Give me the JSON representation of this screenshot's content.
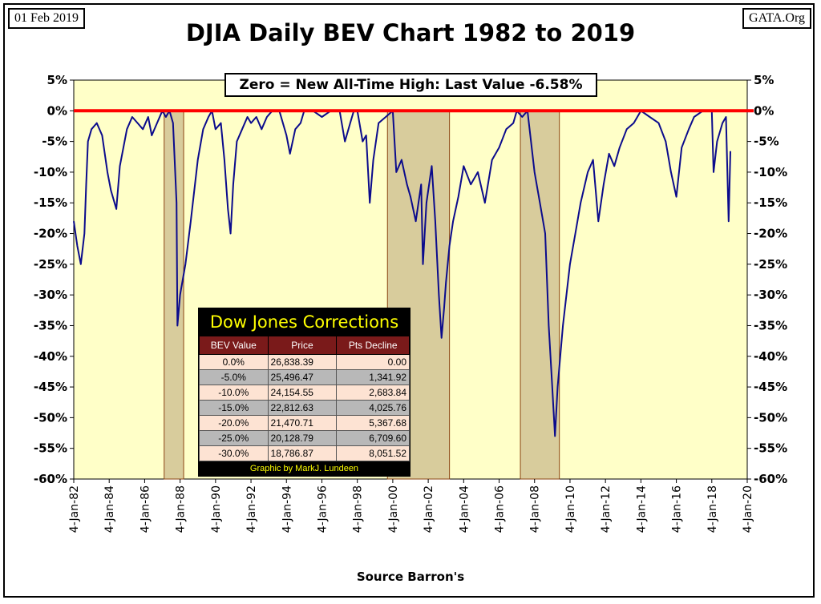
{
  "header": {
    "date": "01 Feb 2019",
    "site": "GATA.Org"
  },
  "callout": "Zero = New All-Time High: Last Value  -6.58%",
  "corrections": {
    "title": "Dow Jones Corrections",
    "headers": [
      "BEV Value",
      "Price",
      "Pts Decline"
    ],
    "rows": [
      [
        "0.0%",
        "26,838.39",
        "0.00"
      ],
      [
        "-5.0%",
        "25,496.47",
        "1,341.92"
      ],
      [
        "-10.0%",
        "24,154.55",
        "2,683.84"
      ],
      [
        "-15.0%",
        "22,812.63",
        "4,025.76"
      ],
      [
        "-20.0%",
        "21,470.71",
        "5,367.68"
      ],
      [
        "-25.0%",
        "20,128.79",
        "6,709.60"
      ],
      [
        "-30.0%",
        "18,786.87",
        "8,051.52"
      ]
    ],
    "footer": "Graphic by MarkJ. Lundeen"
  },
  "colors": {
    "plot_bg": "#ffffc8",
    "line": "#0b0b8c",
    "zero_line": "#ff0000",
    "band": "#d8cc9c"
  },
  "chart_data": {
    "type": "line",
    "title": "DJIA Daily BEV Chart 1982 to 2019",
    "xlabel": "Source Barron's",
    "ylabel": "",
    "ylim": [
      -60,
      5
    ],
    "yticks": [
      "5%",
      "0%",
      "-5%",
      "-10%",
      "-15%",
      "-20%",
      "-25%",
      "-30%",
      "-35%",
      "-40%",
      "-45%",
      "-50%",
      "-55%",
      "-60%"
    ],
    "xlim": [
      1982.0,
      2020.0
    ],
    "xticks": [
      "4-Jan-82",
      "4-Jan-84",
      "4-Jan-86",
      "4-Jan-88",
      "4-Jan-90",
      "4-Jan-92",
      "4-Jan-94",
      "4-Jan-96",
      "4-Jan-98",
      "4-Jan-00",
      "4-Jan-02",
      "4-Jan-04",
      "4-Jan-06",
      "4-Jan-08",
      "4-Jan-10",
      "4-Jan-12",
      "4-Jan-14",
      "4-Jan-16",
      "4-Jan-18",
      "4-Jan-20"
    ],
    "shaded_periods": [
      [
        1987.1,
        1988.2
      ],
      [
        1999.7,
        2003.2
      ],
      [
        2007.2,
        2009.4
      ]
    ],
    "series": [
      {
        "x": [
          1982.0,
          1982.2,
          1982.4,
          1982.6,
          1982.7,
          1982.8,
          1983.0,
          1983.3,
          1983.6,
          1983.9,
          1984.1,
          1984.4,
          1984.6,
          1984.8,
          1985.0,
          1985.3,
          1985.6,
          1985.9,
          1986.2,
          1986.4,
          1986.7,
          1987.0,
          1987.2,
          1987.4,
          1987.6,
          1987.8,
          1987.85,
          1988.0,
          1988.3,
          1988.6,
          1989.0,
          1989.3,
          1989.6,
          1989.8,
          1990.0,
          1990.3,
          1990.5,
          1990.7,
          1990.85,
          1991.0,
          1991.2,
          1991.5,
          1991.8,
          1992.0,
          1992.3,
          1992.6,
          1992.9,
          1993.2,
          1993.6,
          1994.0,
          1994.2,
          1994.5,
          1994.8,
          1995.0,
          1995.5,
          1996.0,
          1996.5,
          1997.0,
          1997.3,
          1997.6,
          1997.8,
          1998.0,
          1998.3,
          1998.5,
          1998.7,
          1998.9,
          1999.2,
          1999.6,
          2000.0,
          2000.2,
          2000.5,
          2000.8,
          2001.0,
          2001.3,
          2001.6,
          2001.7,
          2001.9,
          2002.2,
          2002.4,
          2002.6,
          2002.75,
          2002.9,
          2003.0,
          2003.2,
          2003.4,
          2003.7,
          2004.0,
          2004.4,
          2004.8,
          2005.2,
          2005.6,
          2006.0,
          2006.4,
          2006.8,
          2007.0,
          2007.3,
          2007.6,
          2007.8,
          2008.0,
          2008.3,
          2008.6,
          2008.8,
          2009.0,
          2009.15,
          2009.3,
          2009.6,
          2010.0,
          2010.3,
          2010.6,
          2011.0,
          2011.3,
          2011.6,
          2011.9,
          2012.2,
          2012.5,
          2012.8,
          2013.2,
          2013.6,
          2014.0,
          2014.5,
          2015.0,
          2015.4,
          2015.7,
          2016.0,
          2016.3,
          2016.7,
          2017.0,
          2017.5,
          2018.0,
          2018.1,
          2018.3,
          2018.6,
          2018.8,
          2018.95,
          2019.05
        ],
        "values": [
          -18,
          -22,
          -25,
          -20,
          -12,
          -5,
          -3,
          -2,
          -4,
          -10,
          -13,
          -16,
          -9,
          -6,
          -3,
          -1,
          -2,
          -3,
          -1,
          -4,
          -2,
          0,
          -1,
          0,
          -2,
          -15,
          -35,
          -30,
          -25,
          -18,
          -8,
          -3,
          -1,
          0,
          -3,
          -2,
          -8,
          -16,
          -20,
          -12,
          -5,
          -3,
          -1,
          -2,
          -1,
          -3,
          -1,
          0,
          0,
          -4,
          -7,
          -3,
          -2,
          0,
          0,
          -1,
          0,
          0,
          -5,
          -2,
          0,
          0,
          -5,
          -4,
          -15,
          -8,
          -2,
          -1,
          0,
          -10,
          -8,
          -12,
          -14,
          -18,
          -12,
          -25,
          -15,
          -9,
          -18,
          -30,
          -37,
          -32,
          -28,
          -22,
          -18,
          -14,
          -9,
          -12,
          -10,
          -15,
          -8,
          -6,
          -3,
          -2,
          0,
          -1,
          0,
          -5,
          -10,
          -15,
          -20,
          -35,
          -45,
          -53,
          -45,
          -35,
          -25,
          -20,
          -15,
          -10,
          -8,
          -18,
          -12,
          -7,
          -9,
          -6,
          -3,
          -2,
          0,
          -1,
          -2,
          -5,
          -10,
          -14,
          -6,
          -3,
          -1,
          0,
          0,
          -10,
          -5,
          -2,
          -1,
          -18,
          -6.58
        ]
      }
    ]
  }
}
